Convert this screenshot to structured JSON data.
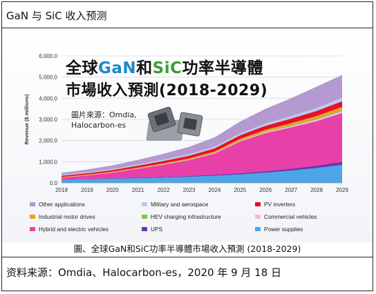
{
  "header": {
    "title": "GaN 与 SiC 收入预测"
  },
  "figure": {
    "overlay_title_line1_a": "全球",
    "overlay_title_line1_gan": "GaN",
    "overlay_title_line1_b": "和",
    "overlay_title_line1_sic": "SiC",
    "overlay_title_line1_c": "功率半導體",
    "overlay_title_line2": "市場收入預測(2018-2029)",
    "image_credit_line1": "圖片來源：Omdia,",
    "image_credit_line2": "Halocarbon-es",
    "caption": "圖、全球GaN和SiC功率半導體市場收入預測 (2018-2029)"
  },
  "footer": {
    "source": "资料来源：Omdia、Halocarbon-es，2020 年 9 月 18 日"
  },
  "colors": {
    "gan_blue": "#1e88c8",
    "sic_green": "#3d9a3a"
  },
  "chart_data": {
    "type": "area",
    "stacked": true,
    "ylabel": "Revenue ($ millions)",
    "xlabel": "",
    "x": [
      "2018",
      "2019",
      "2020",
      "2021",
      "2022",
      "2023",
      "2024",
      "2025",
      "2026",
      "2027",
      "2028",
      "2029"
    ],
    "ylim": [
      0,
      6000
    ],
    "yticks": [
      "0.0",
      "1,000.0",
      "2,000.0",
      "3,000.0",
      "4,000.0",
      "5,000.0",
      "6,000.0"
    ],
    "ytick_values": [
      0,
      1000,
      2000,
      3000,
      4000,
      5000,
      6000
    ],
    "grid": true,
    "series": [
      {
        "name": "Power supplies",
        "color": "#4aa6e8",
        "values": [
          150,
          170,
          200,
          220,
          250,
          290,
          340,
          400,
          480,
          580,
          700,
          850
        ]
      },
      {
        "name": "UPS",
        "color": "#6a35b0",
        "values": [
          20,
          22,
          25,
          28,
          32,
          38,
          45,
          55,
          70,
          90,
          115,
          150
        ]
      },
      {
        "name": "Hybrid and electric vehicles",
        "color": "#e83fa8",
        "values": [
          80,
          160,
          260,
          420,
          580,
          750,
          1000,
          1500,
          1800,
          1950,
          2100,
          2300
        ]
      },
      {
        "name": "Commercial vehicles",
        "color": "#f2b8e0",
        "values": [
          5,
          6,
          8,
          10,
          12,
          15,
          20,
          30,
          45,
          60,
          75,
          90
        ]
      },
      {
        "name": "HEV charging infrastructure",
        "color": "#7ec84a",
        "values": [
          3,
          4,
          5,
          7,
          9,
          12,
          16,
          22,
          30,
          40,
          55,
          70
        ]
      },
      {
        "name": "Industrial motor drives",
        "color": "#f0a020",
        "values": [
          20,
          25,
          30,
          35,
          42,
          50,
          60,
          72,
          85,
          100,
          115,
          130
        ]
      },
      {
        "name": "PV inverters",
        "color": "#e8102a",
        "values": [
          60,
          70,
          80,
          95,
          110,
          130,
          150,
          170,
          190,
          215,
          240,
          270
        ]
      },
      {
        "name": "Military and aerospace",
        "color": "#b8ccec",
        "values": [
          40,
          45,
          50,
          55,
          62,
          70,
          80,
          92,
          105,
          120,
          140,
          160
        ]
      },
      {
        "name": "Other applications",
        "color": "#b49ad0",
        "values": [
          100,
          130,
          170,
          220,
          280,
          350,
          440,
          559,
          695,
          845,
          1010,
          1080
        ]
      }
    ],
    "legend_order": [
      "Other applications",
      "Military and aerospace",
      "PV inverters",
      "Industrial motor drives",
      "HEV charging infrastructure",
      "Commercial vehicles",
      "Hybrid and electric vehicles",
      "UPS",
      "Power supplies"
    ],
    "legend_position": "bottom"
  }
}
